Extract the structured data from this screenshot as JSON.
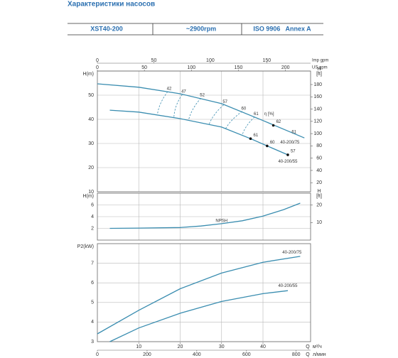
{
  "title": "Характеристики насосов",
  "header": [
    "XST40-200",
    "~2900rpm",
    "ISO 9906   Annex A"
  ],
  "chart_data": [
    {
      "type": "line",
      "ylabel": "H(m)",
      "y2label": [
        "H",
        "[ft]"
      ],
      "xlim": [
        0,
        51.5
      ],
      "xticks": [
        10,
        20,
        30,
        40
      ],
      "ylim": [
        10,
        60
      ],
      "yticks": [
        10,
        20,
        30,
        40,
        50
      ],
      "y2lim": [
        5.2,
        202
      ],
      "y2ticks": [
        20,
        40,
        60,
        80,
        100,
        120,
        140,
        160,
        180
      ],
      "grid": true,
      "top_axes": [
        {
          "label": "Imp gpm",
          "xlim": [
            0,
            188.8
          ],
          "ticks": [
            0,
            50,
            100,
            150
          ]
        },
        {
          "label": "US gpm",
          "xlim": [
            0,
            226.7
          ],
          "ticks": [
            0,
            50,
            100,
            150,
            200
          ]
        }
      ],
      "series": [
        {
          "name": "40-200/75",
          "color": "#3a8db0",
          "x": [
            0,
            10,
            20,
            30,
            40,
            50
          ],
          "values": [
            54.7,
            53.3,
            50.6,
            46.5,
            39.5,
            32.3
          ],
          "label_x": 46.5,
          "label_y": 30.5
        },
        {
          "name": "40-200/55",
          "color": "#3a8db0",
          "x": [
            3,
            10,
            20,
            30,
            37,
            41,
            46
          ],
          "values": [
            43.8,
            43.0,
            40.3,
            36.8,
            32.0,
            29.0,
            25.3
          ],
          "label_x": 46,
          "label_y": 22.5
        }
      ],
      "efficiency_title": {
        "text": "η [%]",
        "x": 41.5,
        "y": 42.3
      },
      "efficiency": [
        {
          "label": "42",
          "x": [
            17,
            14.5
          ],
          "y": [
            51.5,
            42
          ]
        },
        {
          "label": "47",
          "x": [
            20.5,
            18.5
          ],
          "y": [
            50.3,
            41
          ]
        },
        {
          "label": "52",
          "x": [
            25,
            22
          ],
          "y": [
            48.8,
            39.5
          ]
        },
        {
          "label": "57",
          "x": [
            30.5,
            27
          ],
          "y": [
            46,
            38
          ]
        },
        {
          "label": "60",
          "x": [
            35,
            31
          ],
          "y": [
            43.3,
            36.2
          ]
        },
        {
          "label": "61",
          "x": [
            38,
            35
          ],
          "y": [
            41,
            33.5
          ]
        }
      ],
      "points": [
        {
          "label": "62",
          "x": 42.5,
          "y": 37.5
        },
        {
          "label": "61",
          "x": 37,
          "y": 32
        },
        {
          "label": "60",
          "x": 41,
          "y": 29
        },
        {
          "label": "57",
          "x": 46,
          "y": 25.3
        }
      ],
      "annotations": [
        {
          "text": "61",
          "x": 47.5,
          "y": 34.7
        }
      ]
    },
    {
      "type": "line",
      "ylabel": "H(m)",
      "y2label": [
        "H",
        "[ft]"
      ],
      "xlim": [
        0,
        51.5
      ],
      "xticks": [
        10,
        20,
        30,
        40
      ],
      "ylim": [
        0,
        8
      ],
      "yticks": [
        2,
        4,
        6
      ],
      "y2lim": [
        0,
        26.8
      ],
      "y2ticks": [
        10,
        20
      ],
      "grid": true,
      "series": [
        {
          "name": "NPSH",
          "color": "#3a8db0",
          "x": [
            3,
            10,
            20,
            25,
            30,
            35,
            40,
            45,
            49
          ],
          "values": [
            2.0,
            2.05,
            2.15,
            2.4,
            2.8,
            3.3,
            4.1,
            5.2,
            6.3
          ],
          "label_x": 30,
          "label_y": 3.3
        }
      ]
    },
    {
      "type": "line",
      "ylabel": "P2(kW)",
      "xlim": [
        0,
        51.5
      ],
      "xticks": [
        10,
        20,
        30,
        40
      ],
      "ylim": [
        3,
        8
      ],
      "yticks": [
        3,
        4,
        5,
        6,
        7
      ],
      "grid": true,
      "bottom_axes": [
        {
          "q": "Q",
          "unit": "м³/ч",
          "xlim": [
            0,
            51.5
          ],
          "ticks": [
            10,
            20,
            30,
            40
          ]
        },
        {
          "q": "Q",
          "unit": "л/мин",
          "xlim": [
            0,
            858
          ],
          "ticks": [
            0,
            200,
            400,
            600,
            800
          ]
        }
      ],
      "series": [
        {
          "name": "40-200/75",
          "color": "#3a8db0",
          "x": [
            0,
            10,
            20,
            30,
            40,
            49
          ],
          "values": [
            3.4,
            4.6,
            5.7,
            6.5,
            7.05,
            7.35
          ],
          "label_x": 47,
          "label_y": 7.55
        },
        {
          "name": "40-200/55",
          "color": "#3a8db0",
          "x": [
            3,
            10,
            20,
            30,
            40,
            46
          ],
          "values": [
            3.0,
            3.7,
            4.45,
            5.05,
            5.45,
            5.6
          ],
          "label_x": 46,
          "label_y": 5.85
        }
      ]
    }
  ]
}
